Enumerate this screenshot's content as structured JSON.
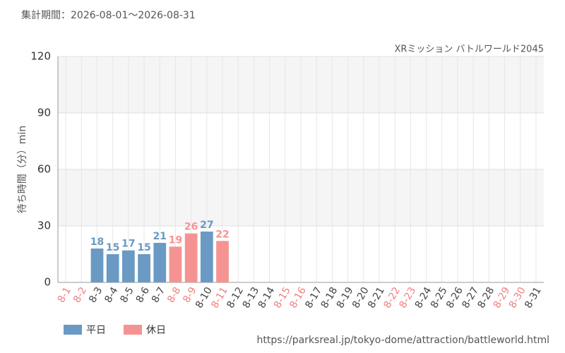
{
  "chart_data": {
    "type": "bar",
    "subtitle": "集計期間：2026-08-01～2026-08-31",
    "title": "XRミッション バトルワールド2045",
    "y_label": "待ち時間（分）min",
    "source": "https://parksreal.jp/tokyo-dome/attraction/battleworld.html",
    "categories": [
      "8-1",
      "8-2",
      "8-3",
      "8-4",
      "8-5",
      "8-6",
      "8-7",
      "8-8",
      "8-9",
      "8-10",
      "8-11",
      "8-12",
      "8-13",
      "8-14",
      "8-15",
      "8-16",
      "8-17",
      "8-18",
      "8-19",
      "8-20",
      "8-21",
      "8-22",
      "8-23",
      "8-24",
      "8-25",
      "8-26",
      "8-27",
      "8-28",
      "8-29",
      "8-30",
      "8-31"
    ],
    "category_colors": [
      "#f08080",
      "#f08080",
      "#444",
      "#444",
      "#444",
      "#444",
      "#444",
      "#f08080",
      "#f08080",
      "#444",
      "#f08080",
      "#444",
      "#444",
      "#444",
      "#f08080",
      "#f08080",
      "#444",
      "#444",
      "#444",
      "#444",
      "#444",
      "#f08080",
      "#f08080",
      "#444",
      "#444",
      "#444",
      "#444",
      "#444",
      "#f08080",
      "#f08080",
      "#444"
    ],
    "series": [
      {
        "name": "平日",
        "color": "#6a9ac4",
        "values": [
          null,
          null,
          18,
          15,
          17,
          15,
          21,
          null,
          null,
          27,
          null,
          null,
          null,
          null,
          null,
          null,
          null,
          null,
          null,
          null,
          null,
          null,
          null,
          null,
          null,
          null,
          null,
          null,
          null,
          null,
          null
        ]
      },
      {
        "name": "休日",
        "color": "#f59393",
        "values": [
          null,
          null,
          null,
          null,
          null,
          null,
          null,
          19,
          26,
          null,
          22,
          null,
          null,
          null,
          null,
          null,
          null,
          null,
          null,
          null,
          null,
          null,
          null,
          null,
          null,
          null,
          null,
          null,
          null,
          null,
          null
        ]
      }
    ],
    "ylim": [
      0,
      120
    ],
    "yticks": [
      0,
      30,
      60,
      90,
      120
    ],
    "grid": true
  }
}
